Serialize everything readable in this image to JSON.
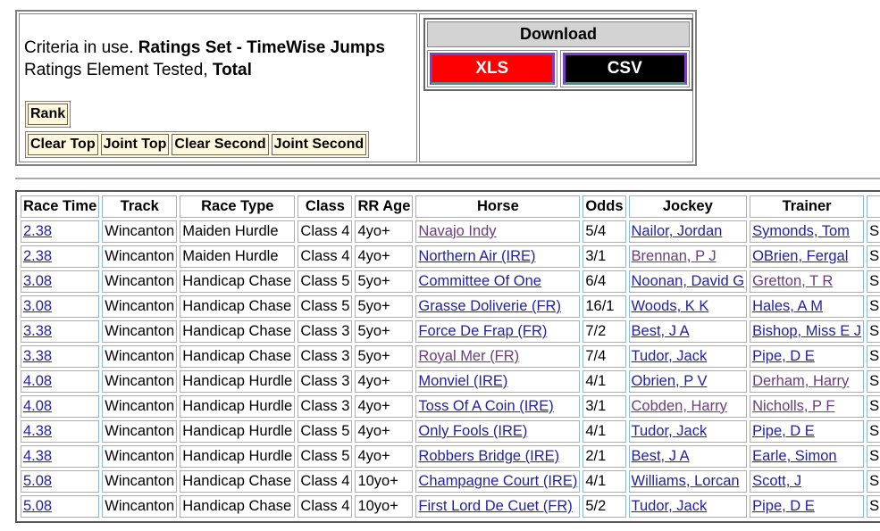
{
  "criteria": {
    "prefix": "Criteria in use. ",
    "ratings_set": "Ratings Set - TimeWise Jumps",
    "element_prefix": "Ratings Element Tested, ",
    "element": "Total"
  },
  "rank_button": "Rank",
  "filter_buttons": [
    "Clear Top",
    "Joint Top",
    "Clear Second",
    "Joint Second"
  ],
  "download": {
    "title": "Download",
    "xls": "XLS",
    "csv": "CSV",
    "xls_color": "#ff0000",
    "csv_color": "#000000"
  },
  "table": {
    "headers": [
      "Race Time",
      "Track",
      "Race Type",
      "Class",
      "RR Age",
      "Horse",
      "Odds",
      "Jockey",
      "Trainer",
      ""
    ],
    "rows": [
      {
        "time": "2.38",
        "track": "Wincanton",
        "type": "Maiden Hurdle",
        "class": "Class 4",
        "age": "4yo+",
        "horse": "Navajo Indy",
        "horse_visited": true,
        "odds": "5/4",
        "jockey": "Nailor, Jordan",
        "jockey_visited": false,
        "trainer": "Symonds, Tom",
        "trainer_visited": false,
        "extra": "S"
      },
      {
        "time": "2.38",
        "track": "Wincanton",
        "type": "Maiden Hurdle",
        "class": "Class 4",
        "age": "4yo+",
        "horse": "Northern Air (IRE)",
        "horse_visited": false,
        "odds": "3/1",
        "jockey": "Brennan, P J",
        "jockey_visited": true,
        "trainer": "OBrien, Fergal",
        "trainer_visited": false,
        "extra": "S"
      },
      {
        "time": "3.08",
        "track": "Wincanton",
        "type": "Handicap Chase",
        "class": "Class 5",
        "age": "5yo+",
        "horse": "Committee Of One",
        "horse_visited": false,
        "odds": "6/4",
        "jockey": "Noonan, David G",
        "jockey_visited": false,
        "trainer": "Gretton, T R",
        "trainer_visited": true,
        "extra": "S"
      },
      {
        "time": "3.08",
        "track": "Wincanton",
        "type": "Handicap Chase",
        "class": "Class 5",
        "age": "5yo+",
        "horse": "Grasse Doliverie (FR)",
        "horse_visited": false,
        "odds": "16/1",
        "jockey": "Woods, K K",
        "jockey_visited": false,
        "trainer": "Hales, A M",
        "trainer_visited": false,
        "extra": "S"
      },
      {
        "time": "3.38",
        "track": "Wincanton",
        "type": "Handicap Chase",
        "class": "Class 3",
        "age": "5yo+",
        "horse": "Force De Frap (FR)",
        "horse_visited": false,
        "odds": "7/2",
        "jockey": "Best, J A",
        "jockey_visited": false,
        "trainer": "Bishop, Miss E J",
        "trainer_visited": false,
        "extra": "S"
      },
      {
        "time": "3.38",
        "track": "Wincanton",
        "type": "Handicap Chase",
        "class": "Class 3",
        "age": "5yo+",
        "horse": "Royal Mer (FR)",
        "horse_visited": true,
        "odds": "7/4",
        "jockey": "Tudor, Jack",
        "jockey_visited": false,
        "trainer": "Pipe, D E",
        "trainer_visited": false,
        "extra": "S"
      },
      {
        "time": "4.08",
        "track": "Wincanton",
        "type": "Handicap Hurdle",
        "class": "Class 3",
        "age": "4yo+",
        "horse": "Monviel (IRE)",
        "horse_visited": false,
        "odds": "4/1",
        "jockey": "Obrien, P V",
        "jockey_visited": false,
        "trainer": "Derham, Harry",
        "trainer_visited": true,
        "extra": "S"
      },
      {
        "time": "4.08",
        "track": "Wincanton",
        "type": "Handicap Hurdle",
        "class": "Class 3",
        "age": "4yo+",
        "horse": "Toss Of A Coin (IRE)",
        "horse_visited": false,
        "odds": "3/1",
        "jockey": "Cobden, Harry",
        "jockey_visited": true,
        "trainer": "Nicholls, P F",
        "trainer_visited": true,
        "extra": "S"
      },
      {
        "time": "4.38",
        "track": "Wincanton",
        "type": "Handicap Hurdle",
        "class": "Class 5",
        "age": "4yo+",
        "horse": "Only Fools (IRE)",
        "horse_visited": false,
        "odds": "4/1",
        "jockey": "Tudor, Jack",
        "jockey_visited": false,
        "trainer": "Pipe, D E",
        "trainer_visited": false,
        "extra": "S"
      },
      {
        "time": "4.38",
        "track": "Wincanton",
        "type": "Handicap Hurdle",
        "class": "Class 5",
        "age": "4yo+",
        "horse": "Robbers Bridge (IRE)",
        "horse_visited": false,
        "odds": "2/1",
        "jockey": "Best, J A",
        "jockey_visited": false,
        "trainer": "Earle, Simon",
        "trainer_visited": false,
        "extra": "S"
      },
      {
        "time": "5.08",
        "track": "Wincanton",
        "type": "Handicap Chase",
        "class": "Class 4",
        "age": "10yo+",
        "horse": "Champagne Court (IRE)",
        "horse_visited": false,
        "odds": "4/1",
        "jockey": "Williams, Lorcan",
        "jockey_visited": false,
        "trainer": "Scott, J",
        "trainer_visited": false,
        "extra": "S"
      },
      {
        "time": "5.08",
        "track": "Wincanton",
        "type": "Handicap Chase",
        "class": "Class 4",
        "age": "10yo+",
        "horse": "First Lord De Cuet (FR)",
        "horse_visited": false,
        "odds": "5/2",
        "jockey": "Tudor, Jack",
        "jockey_visited": false,
        "trainer": "Pipe, D E",
        "trainer_visited": false,
        "extra": "S"
      }
    ]
  }
}
